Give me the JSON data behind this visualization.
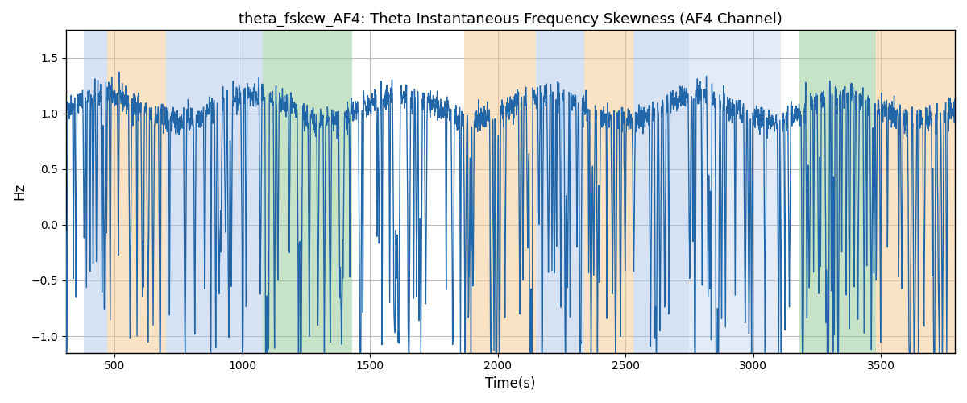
{
  "title": "theta_fskew_AF4: Theta Instantaneous Frequency Skewness (AF4 Channel)",
  "xlabel": "Time(s)",
  "ylabel": "Hz",
  "xlim": [
    310,
    3790
  ],
  "ylim": [
    -1.15,
    1.75
  ],
  "line_color": "#2066a8",
  "line_width": 1.0,
  "background_color": "#ffffff",
  "grid_color": "#bbbbbb",
  "bands": [
    {
      "xmin": 380,
      "xmax": 470,
      "color": "#aec6e8",
      "alpha": 0.5
    },
    {
      "xmin": 470,
      "xmax": 700,
      "color": "#f5c98a",
      "alpha": 0.5
    },
    {
      "xmin": 700,
      "xmax": 810,
      "color": "#aec6e8",
      "alpha": 0.5
    },
    {
      "xmin": 810,
      "xmax": 1080,
      "color": "#aec6e8",
      "alpha": 0.5
    },
    {
      "xmin": 1080,
      "xmax": 1160,
      "color": "#90c990",
      "alpha": 0.5
    },
    {
      "xmin": 1160,
      "xmax": 1430,
      "color": "#90c990",
      "alpha": 0.5
    },
    {
      "xmin": 1870,
      "xmax": 2150,
      "color": "#f5c98a",
      "alpha": 0.5
    },
    {
      "xmin": 2150,
      "xmax": 2340,
      "color": "#aec6e8",
      "alpha": 0.5
    },
    {
      "xmin": 2340,
      "xmax": 2530,
      "color": "#f5c98a",
      "alpha": 0.5
    },
    {
      "xmin": 2530,
      "xmax": 2750,
      "color": "#aec6e8",
      "alpha": 0.5
    },
    {
      "xmin": 2750,
      "xmax": 3070,
      "color": "#aec6e8",
      "alpha": 0.35
    },
    {
      "xmin": 3070,
      "xmax": 3110,
      "color": "#aec6e8",
      "alpha": 0.35
    },
    {
      "xmin": 3180,
      "xmax": 3480,
      "color": "#90c990",
      "alpha": 0.5
    },
    {
      "xmin": 3480,
      "xmax": 3530,
      "color": "#f5c98a",
      "alpha": 0.5
    },
    {
      "xmin": 3530,
      "xmax": 3790,
      "color": "#f5c98a",
      "alpha": 0.5
    }
  ],
  "seed": 12345,
  "n_points": 3480,
  "x_start": 310,
  "x_end": 3790
}
